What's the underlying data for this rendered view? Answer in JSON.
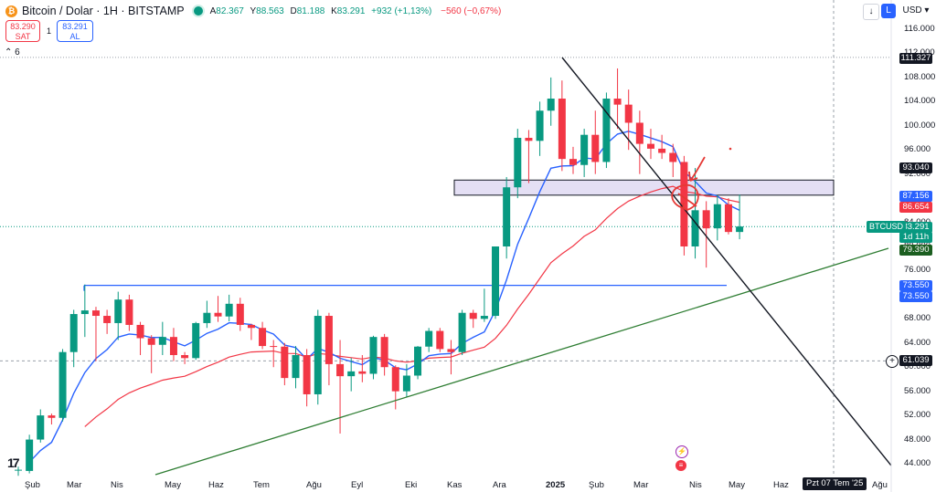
{
  "header": {
    "symbol": "Bitcoin / Dolar · 1H · BITSTAMP",
    "o_label": "A",
    "o_value": "82.367",
    "h_label": "Y",
    "h_value": "88.563",
    "l_label": "D",
    "l_value": "81.188",
    "c_label": "K",
    "c_value": "83.291",
    "change": "+932 (+1,13%)",
    "change2": "−560 (−0,67%)"
  },
  "trade": {
    "sell_price": "83.290",
    "sell_label": "SAT",
    "spread": "1",
    "buy_price": "83.291",
    "buy_label": "AL"
  },
  "indicators_toggle": "6",
  "toolbar": {
    "currency": "USD"
  },
  "axis": {
    "y_ticks": [
      "116.000",
      "112.000",
      "108.000",
      "104.000",
      "100.000",
      "96.000",
      "92.000",
      "88.000",
      "84.000",
      "80.000",
      "76.000",
      "72.000",
      "68.000",
      "64.000",
      "60.000",
      "56.000",
      "52.000",
      "48.000",
      "44.000"
    ],
    "x_ticks": [
      "Şub",
      "Mar",
      "Nis",
      "May",
      "Haz",
      "Tem",
      "Ağu",
      "Eyl",
      "Eki",
      "Kas",
      "Ara",
      "2025",
      "Şub",
      "Mar",
      "Nis",
      "May",
      "Haz",
      "Ağu"
    ],
    "crosshair_date": "Pzt 07 Tem '25"
  },
  "price_labels": {
    "top": "111.327",
    "zone_top": "93.040",
    "ma_fast": "87.156",
    "ma_slow": "86.654",
    "symbol": "BTCUSD",
    "last": "83.291",
    "countdown": "1d 11h",
    "trend_low": "79.390",
    "support_a": "73.550",
    "support_b": "73.550",
    "horizontal": "61.039"
  },
  "colors": {
    "up": "#089981",
    "down": "#f23645",
    "ma_fast": "#2962ff",
    "ma_slow": "#f23645",
    "zone_fill": "#d9d2f0",
    "support_line": "#2962ff",
    "trend_up": "#2e7d32",
    "trend_down": "#131722"
  },
  "icons": [
    "bitcoin-logo",
    "tradingview-logo",
    "lightning-event-icon",
    "us-flag-event-icon",
    "plus-icon",
    "arrow-down-icon"
  ],
  "chart_data": {
    "type": "candlestick",
    "interval": "1W",
    "ylim": [
      42000,
      118000
    ],
    "candles": [
      {
        "o": 43000,
        "h": 43500,
        "l": 42000,
        "c": 43000
      },
      {
        "o": 42800,
        "h": 48800,
        "l": 42400,
        "c": 48000
      },
      {
        "o": 48000,
        "h": 53000,
        "l": 47500,
        "c": 52000
      },
      {
        "o": 52000,
        "h": 52300,
        "l": 50500,
        "c": 51600
      },
      {
        "o": 51600,
        "h": 63000,
        "l": 51000,
        "c": 62500
      },
      {
        "o": 62500,
        "h": 69500,
        "l": 60000,
        "c": 68800
      },
      {
        "o": 68800,
        "h": 73700,
        "l": 65000,
        "c": 69400
      },
      {
        "o": 69400,
        "h": 70000,
        "l": 61000,
        "c": 68500
      },
      {
        "o": 68500,
        "h": 69500,
        "l": 65500,
        "c": 67300
      },
      {
        "o": 67300,
        "h": 72500,
        "l": 64500,
        "c": 71200
      },
      {
        "o": 71200,
        "h": 72000,
        "l": 66000,
        "c": 67000
      },
      {
        "o": 67000,
        "h": 67500,
        "l": 62000,
        "c": 64800
      },
      {
        "o": 64800,
        "h": 65300,
        "l": 59000,
        "c": 63700
      },
      {
        "o": 63700,
        "h": 67500,
        "l": 62000,
        "c": 65000
      },
      {
        "o": 65000,
        "h": 66500,
        "l": 61000,
        "c": 62000
      },
      {
        "o": 62000,
        "h": 62500,
        "l": 60500,
        "c": 61500
      },
      {
        "o": 61500,
        "h": 67500,
        "l": 61200,
        "c": 67300
      },
      {
        "o": 67300,
        "h": 71000,
        "l": 66500,
        "c": 69000
      },
      {
        "o": 69000,
        "h": 71800,
        "l": 67500,
        "c": 68400
      },
      {
        "o": 68400,
        "h": 72000,
        "l": 67600,
        "c": 70500
      },
      {
        "o": 70500,
        "h": 71500,
        "l": 66000,
        "c": 67000
      },
      {
        "o": 67000,
        "h": 67200,
        "l": 64500,
        "c": 66500
      },
      {
        "o": 66500,
        "h": 67500,
        "l": 63000,
        "c": 63500
      },
      {
        "o": 63500,
        "h": 64500,
        "l": 60000,
        "c": 63400
      },
      {
        "o": 63400,
        "h": 64000,
        "l": 57000,
        "c": 58200
      },
      {
        "o": 58200,
        "h": 63500,
        "l": 56500,
        "c": 62000
      },
      {
        "o": 62000,
        "h": 63000,
        "l": 53500,
        "c": 55500
      },
      {
        "o": 55500,
        "h": 69500,
        "l": 53800,
        "c": 68500
      },
      {
        "o": 68500,
        "h": 69000,
        "l": 57000,
        "c": 60500
      },
      {
        "o": 60500,
        "h": 64500,
        "l": 49000,
        "c": 58500
      },
      {
        "o": 58500,
        "h": 61500,
        "l": 56000,
        "c": 59300
      },
      {
        "o": 59300,
        "h": 62000,
        "l": 57500,
        "c": 58900
      },
      {
        "o": 58900,
        "h": 65200,
        "l": 58000,
        "c": 65000
      },
      {
        "o": 65000,
        "h": 65500,
        "l": 58600,
        "c": 60000
      },
      {
        "o": 60000,
        "h": 60300,
        "l": 53000,
        "c": 56000
      },
      {
        "o": 56000,
        "h": 60500,
        "l": 55000,
        "c": 58600
      },
      {
        "o": 58600,
        "h": 63500,
        "l": 58000,
        "c": 63400
      },
      {
        "o": 63400,
        "h": 66500,
        "l": 62500,
        "c": 66000
      },
      {
        "o": 66000,
        "h": 66500,
        "l": 62500,
        "c": 63000
      },
      {
        "o": 63000,
        "h": 64500,
        "l": 58800,
        "c": 62500
      },
      {
        "o": 62500,
        "h": 69500,
        "l": 62000,
        "c": 69000
      },
      {
        "o": 69000,
        "h": 69500,
        "l": 66500,
        "c": 68000
      },
      {
        "o": 68000,
        "h": 73000,
        "l": 67500,
        "c": 68500
      },
      {
        "o": 68500,
        "h": 80000,
        "l": 68000,
        "c": 80000
      },
      {
        "o": 80000,
        "h": 91500,
        "l": 78000,
        "c": 89800
      },
      {
        "o": 89800,
        "h": 99500,
        "l": 88000,
        "c": 98000
      },
      {
        "o": 98000,
        "h": 99300,
        "l": 90500,
        "c": 97500
      },
      {
        "o": 97500,
        "h": 104000,
        "l": 95000,
        "c": 102500
      },
      {
        "o": 102500,
        "h": 108000,
        "l": 100000,
        "c": 104500
      },
      {
        "o": 104500,
        "h": 107500,
        "l": 92500,
        "c": 94500
      },
      {
        "o": 94500,
        "h": 96500,
        "l": 92000,
        "c": 93500
      },
      {
        "o": 93500,
        "h": 99500,
        "l": 91500,
        "c": 98500
      },
      {
        "o": 98500,
        "h": 102500,
        "l": 92000,
        "c": 94000
      },
      {
        "o": 94000,
        "h": 105500,
        "l": 93000,
        "c": 104500
      },
      {
        "o": 104500,
        "h": 109500,
        "l": 99500,
        "c": 103500
      },
      {
        "o": 103500,
        "h": 106000,
        "l": 96000,
        "c": 100500
      },
      {
        "o": 100500,
        "h": 102500,
        "l": 92000,
        "c": 97000
      },
      {
        "o": 97000,
        "h": 99500,
        "l": 94500,
        "c": 96200
      },
      {
        "o": 96200,
        "h": 98500,
        "l": 94500,
        "c": 95500
      },
      {
        "o": 95500,
        "h": 97000,
        "l": 91500,
        "c": 94000
      },
      {
        "o": 94000,
        "h": 95000,
        "l": 78500,
        "c": 80000
      },
      {
        "o": 80000,
        "h": 93000,
        "l": 78000,
        "c": 86000
      },
      {
        "o": 86000,
        "h": 87500,
        "l": 76500,
        "c": 83000
      },
      {
        "o": 83000,
        "h": 88500,
        "l": 81000,
        "c": 87000
      },
      {
        "o": 87000,
        "h": 88000,
        "l": 82000,
        "c": 82400
      },
      {
        "o": 82400,
        "h": 88600,
        "l": 81200,
        "c": 83300
      }
    ],
    "ma_fast_last": 87156,
    "ma_slow_last": 86654,
    "resistance_zone": [
      88500,
      91000
    ],
    "support_level": 73550,
    "horizontal_level": 61039,
    "high_marker": 111327
  }
}
